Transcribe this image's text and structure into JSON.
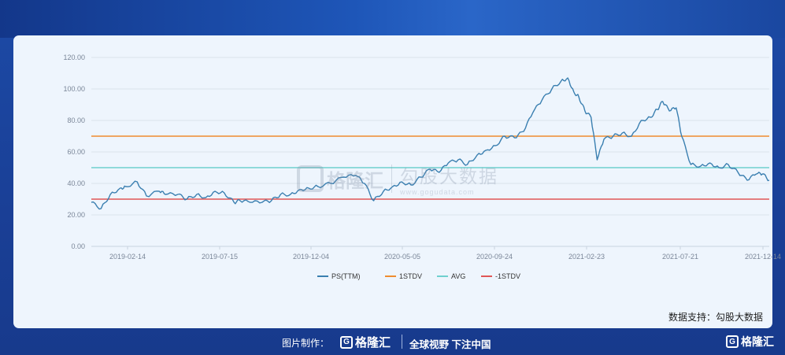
{
  "chart_data": {
    "type": "line",
    "ylim": [
      0,
      120
    ],
    "y_ticks": [
      "0.00",
      "20.00",
      "40.00",
      "60.00",
      "80.00",
      "100.00",
      "120.00"
    ],
    "x_tick_labels": [
      "2019-02-14",
      "2019-07-15",
      "2019-12-04",
      "2020-05-05",
      "2020-09-24",
      "2021-02-23",
      "2021-07-21",
      "2021-12-14"
    ],
    "x_range": [
      "2018-12-20",
      "2021-12-31"
    ],
    "grid": "horizontal",
    "legend_position": "bottom-center",
    "series": [
      {
        "name": "PS(TTM)",
        "color": "#3a7fb0",
        "x": [
          "2018-12-20",
          "2019-01-05",
          "2019-01-20",
          "2019-02-05",
          "2019-02-14",
          "2019-03-05",
          "2019-03-20",
          "2019-04-10",
          "2019-04-20",
          "2019-05-10",
          "2019-05-25",
          "2019-06-10",
          "2019-06-25",
          "2019-07-10",
          "2019-07-25",
          "2019-08-10",
          "2019-08-20",
          "2019-09-05",
          "2019-09-25",
          "2019-10-10",
          "2019-10-25",
          "2019-11-10",
          "2019-11-25",
          "2019-12-10",
          "2019-12-25",
          "2020-01-15",
          "2020-02-05",
          "2020-02-25",
          "2020-03-10",
          "2020-03-25",
          "2020-04-10",
          "2020-04-25",
          "2020-05-10",
          "2020-05-25",
          "2020-06-10",
          "2020-06-25",
          "2020-07-10",
          "2020-07-25",
          "2020-08-10",
          "2020-08-25",
          "2020-09-10",
          "2020-09-24",
          "2020-10-10",
          "2020-10-25",
          "2020-11-10",
          "2020-11-25",
          "2020-12-10",
          "2020-12-25",
          "2021-01-10",
          "2021-01-25",
          "2021-02-05",
          "2021-02-15",
          "2021-02-23",
          "2021-03-05",
          "2021-03-15",
          "2021-03-25",
          "2021-04-05",
          "2021-04-20",
          "2021-05-05",
          "2021-05-20",
          "2021-06-05",
          "2021-06-20",
          "2021-07-01",
          "2021-07-10",
          "2021-07-21",
          "2021-08-01",
          "2021-08-10",
          "2021-08-25",
          "2021-09-10",
          "2021-09-25",
          "2021-10-10",
          "2021-10-25",
          "2021-11-10",
          "2021-11-25",
          "2021-12-10",
          "2021-12-20",
          "2021-12-31"
        ],
        "values": [
          28,
          24,
          33,
          37,
          38,
          41,
          32,
          35,
          33,
          33,
          30,
          33,
          31,
          35,
          34,
          28,
          29,
          28,
          28,
          29,
          33,
          33,
          36,
          37,
          38,
          40,
          44,
          45,
          40,
          29,
          35,
          38,
          41,
          39,
          44,
          49,
          47,
          53,
          55,
          52,
          58,
          61,
          64,
          70,
          69,
          73,
          85,
          93,
          100,
          105,
          107,
          98,
          95,
          86,
          82,
          55,
          68,
          70,
          72,
          70,
          80,
          82,
          87,
          92,
          86,
          88,
          70,
          52,
          51,
          53,
          50,
          52,
          47,
          42,
          46,
          46,
          42
        ]
      },
      {
        "name": "1STDV",
        "color": "#ef8c2f",
        "values": [
          70
        ]
      },
      {
        "name": "AVG",
        "color": "#6fd0cf",
        "values": [
          50
        ]
      },
      {
        "name": "-1STDV",
        "color": "#e05656",
        "values": [
          30
        ]
      }
    ]
  },
  "source_text": "数据支持：勾股大数据",
  "watermark": {
    "logo_text": "格隆汇",
    "logo_url": "gelonghui.com",
    "brand_cn": "勾股大数据",
    "url": "www.gogudata.com"
  },
  "footer": {
    "made_by_label": "图片制作：",
    "brand_name": "格隆汇",
    "slogan": "全球视野 下注中国",
    "corner_brand": "格隆汇"
  }
}
